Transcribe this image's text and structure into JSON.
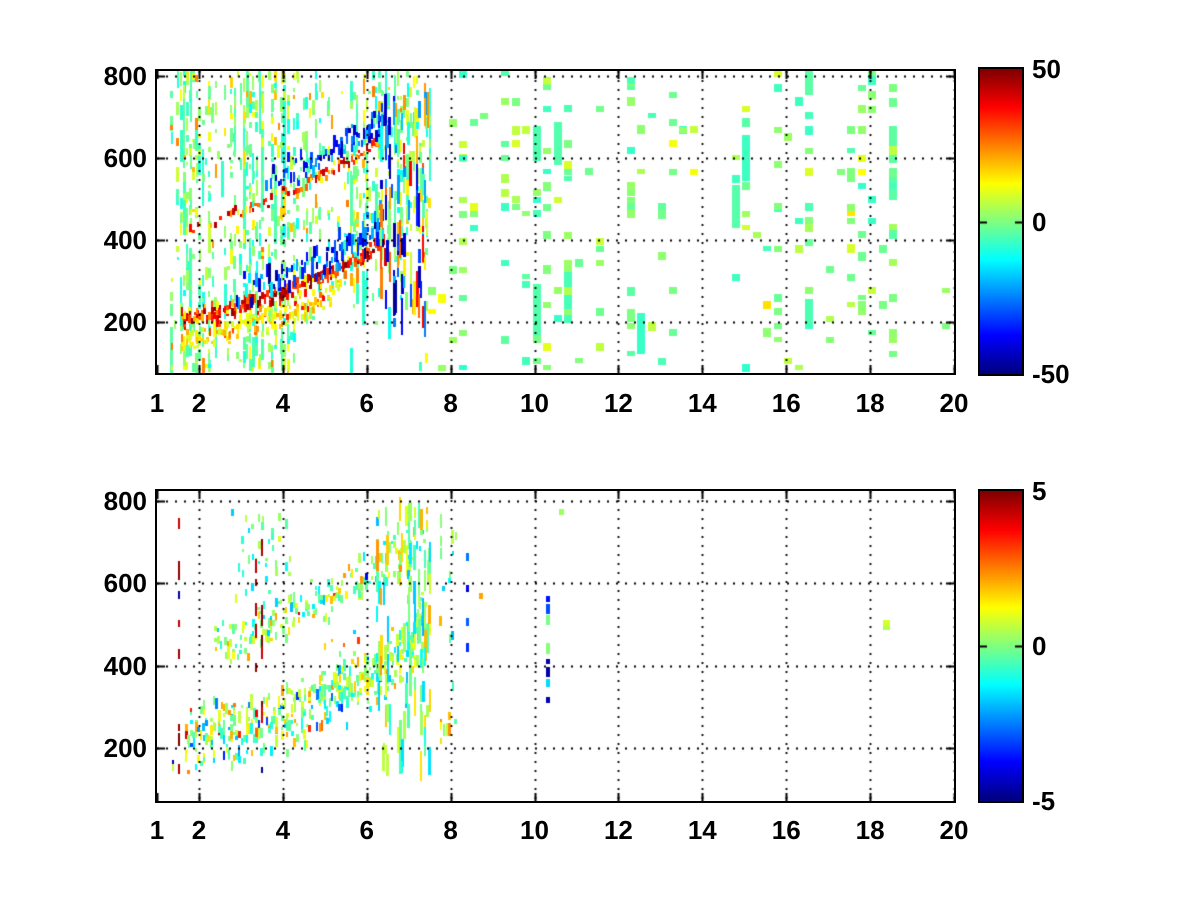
{
  "figure": {
    "background": "#ffffff",
    "text_color": "#000000",
    "colormap_name": "jet",
    "colormap_stops": [
      "#00008f",
      "#0000ff",
      "#00ffff",
      "#7dff7a",
      "#ffff00",
      "#ff0000",
      "#7f0000"
    ]
  },
  "chart_data": [
    {
      "type": "heatmap",
      "panel": "top",
      "x_range": [
        1,
        20
      ],
      "y_range": [
        75,
        812
      ],
      "x_ticks": {
        "values": [
          1,
          2,
          4,
          6,
          8,
          10,
          12,
          14,
          16,
          18,
          20
        ],
        "labels": [
          "1",
          "2",
          "4",
          "6",
          "8",
          "10",
          "12",
          "14",
          "16",
          "18",
          "20"
        ]
      },
      "y_ticks": {
        "values": [
          200,
          400,
          600,
          800
        ],
        "labels": [
          "200",
          "400",
          "600",
          "800"
        ]
      },
      "grid": {
        "style": "dotted",
        "x_lines": [
          2,
          4,
          6,
          8,
          10,
          12,
          14,
          16,
          18,
          20
        ],
        "y_lines": [
          200,
          400,
          600,
          800
        ]
      },
      "colormap": "jet",
      "clim": [
        -50,
        50
      ],
      "colorbar": {
        "position": "right",
        "tick_values": [
          50,
          0,
          -50
        ],
        "tick_labels": [
          "50",
          "0",
          "-50"
        ]
      },
      "seed": 12345,
      "curves": [
        [
          [
            1.6,
            200
          ],
          [
            2.0,
            210
          ],
          [
            2.5,
            218
          ],
          [
            3.0,
            230
          ],
          [
            3.5,
            244
          ],
          [
            4.0,
            260
          ],
          [
            4.5,
            279
          ],
          [
            5.0,
            301
          ],
          [
            5.5,
            326
          ],
          [
            6.0,
            356
          ],
          [
            6.5,
            392
          ],
          [
            7.0,
            436
          ],
          [
            7.45,
            486
          ]
        ],
        [
          [
            1.6,
            415
          ],
          [
            2.0,
            430
          ],
          [
            2.5,
            448
          ],
          [
            3.0,
            468
          ],
          [
            3.5,
            489
          ],
          [
            4.0,
            511
          ],
          [
            4.5,
            534
          ],
          [
            5.0,
            558
          ],
          [
            5.5,
            583
          ],
          [
            6.0,
            611
          ],
          [
            6.5,
            646
          ],
          [
            7.0,
            686
          ],
          [
            7.45,
            726
          ]
        ]
      ],
      "features": [
        {
          "kind": "noise",
          "x": [
            1.35,
            7.55
          ],
          "y": [
            80,
            808
          ],
          "colStep": 0.075,
          "density": 0.5,
          "dashW": [
            2,
            3
          ],
          "dashH": [
            3,
            15
          ],
          "tall": 0.045,
          "tallValues": [
            -9,
            -3
          ],
          "values": [
            [
              0.45,
              -4,
              4
            ],
            [
              0.22,
              -13,
              -4
            ],
            [
              0.25,
              4,
              14
            ],
            [
              0.08,
              14,
              26
            ]
          ],
          "cutoff": {
            "curve": 0,
            "offset": -65,
            "startX": 4.3,
            "factor": 0.12
          }
        },
        {
          "kind": "band",
          "curve": 0,
          "x": [
            1.6,
            5.4
          ],
          "offset": -42,
          "halfWidth": 34,
          "density": 0.5,
          "dashW": [
            2,
            3
          ],
          "dashH": [
            3,
            8
          ],
          "values": [
            [
              0.75,
              6,
              20
            ],
            [
              0.25,
              20,
              40
            ]
          ]
        },
        {
          "kind": "band",
          "curve": 0,
          "x": [
            1.6,
            6.4
          ],
          "offset": 10,
          "halfWidth": 20,
          "density": 0.9,
          "dashW": [
            2,
            3
          ],
          "dashH": [
            3,
            9
          ],
          "values": [
            [
              0.85,
              24,
              50
            ],
            [
              0.15,
              10,
              22
            ]
          ]
        },
        {
          "kind": "band",
          "curve": 0,
          "x": [
            2.9,
            6.4
          ],
          "offset": 58,
          "halfWidth": 46,
          "density": 0.75,
          "ramp": true,
          "dashW": [
            2,
            3
          ],
          "dashH": [
            4,
            14
          ],
          "values": [
            [
              0.8,
              -50,
              -20
            ],
            [
              0.2,
              -16,
              -5
            ]
          ]
        },
        {
          "kind": "band",
          "curve": 1,
          "x": [
            1.8,
            6.4
          ],
          "offset": 2,
          "halfWidth": 17,
          "density": 0.6,
          "ramp": true,
          "dashW": [
            2,
            3
          ],
          "dashH": [
            3,
            8
          ],
          "values": [
            [
              0.85,
              18,
              46
            ],
            [
              0.15,
              6,
              14
            ]
          ]
        },
        {
          "kind": "band",
          "curve": 1,
          "x": [
            3.6,
            6.45
          ],
          "offset": 52,
          "halfWidth": 38,
          "density": 0.7,
          "ramp": true,
          "dashW": [
            2,
            3
          ],
          "dashH": [
            4,
            12
          ],
          "values": [
            [
              0.85,
              -46,
              -16
            ],
            [
              0.15,
              -10,
              -2
            ]
          ]
        },
        {
          "kind": "noise",
          "x": [
            6.35,
            7.48
          ],
          "y": [
            195,
            745
          ],
          "colStep": 0.05,
          "density": 0.55,
          "dashW": [
            2,
            3
          ],
          "dashH": [
            8,
            38
          ],
          "values": [
            [
              0.48,
              -50,
              -18
            ],
            [
              0.3,
              12,
              42
            ],
            [
              0.22,
              -12,
              10
            ]
          ]
        },
        {
          "kind": "speckle",
          "x": [
            7.55,
            20
          ],
          "y": [
            85,
            805
          ],
          "colStep": 0.25,
          "blockW": 8,
          "blockH": [
            5,
            9
          ],
          "density": 0.17,
          "tall": 0.05,
          "tallValues": [
            -8,
            -3
          ],
          "values": [
            [
              0.5,
              -2.5,
              3
            ],
            [
              0.25,
              -8,
              -2.5
            ],
            [
              0.2,
              3,
              9
            ],
            [
              0.05,
              9,
              16
            ]
          ],
          "boost": [
            [
              8.2,
              1.8
            ],
            [
              10.35,
              2.6
            ],
            [
              10.5,
              2.0
            ],
            [
              12.4,
              1.6
            ],
            [
              14.35,
              1.5
            ],
            [
              16.5,
              1.9
            ],
            [
              18.45,
              2.6
            ],
            [
              18.6,
              2.1
            ],
            [
              19.9,
              1.7
            ]
          ]
        }
      ]
    },
    {
      "type": "heatmap",
      "panel": "bottom",
      "x_range": [
        1,
        20
      ],
      "y_range": [
        72,
        824
      ],
      "x_ticks": {
        "values": [
          1,
          2,
          4,
          6,
          8,
          10,
          12,
          14,
          16,
          18,
          20
        ],
        "labels": [
          "1",
          "2",
          "4",
          "6",
          "8",
          "10",
          "12",
          "14",
          "16",
          "18",
          "20"
        ]
      },
      "y_ticks": {
        "values": [
          200,
          400,
          600,
          800
        ],
        "labels": [
          "200",
          "400",
          "600",
          "800"
        ]
      },
      "grid": {
        "style": "dotted",
        "x_lines": [
          2,
          4,
          6,
          8,
          10,
          12,
          14,
          16,
          18,
          20
        ],
        "y_lines": [
          200,
          400,
          600,
          800
        ]
      },
      "colormap": "jet",
      "clim": [
        -5,
        5
      ],
      "colorbar": {
        "position": "right",
        "tick_values": [
          5,
          0,
          -5
        ],
        "tick_labels": [
          "5",
          "0",
          "-5"
        ]
      },
      "seed": 67890,
      "curves": [
        [
          [
            1.6,
            200
          ],
          [
            2.0,
            210
          ],
          [
            2.5,
            218
          ],
          [
            3.0,
            230
          ],
          [
            3.5,
            244
          ],
          [
            4.0,
            260
          ],
          [
            4.5,
            279
          ],
          [
            5.0,
            301
          ],
          [
            5.5,
            326
          ],
          [
            6.0,
            356
          ],
          [
            6.5,
            392
          ],
          [
            7.0,
            436
          ],
          [
            7.45,
            486
          ]
        ],
        [
          [
            1.6,
            415
          ],
          [
            2.0,
            430
          ],
          [
            2.5,
            448
          ],
          [
            3.0,
            468
          ],
          [
            3.5,
            489
          ],
          [
            4.0,
            511
          ],
          [
            4.5,
            534
          ],
          [
            5.0,
            558
          ],
          [
            5.5,
            583
          ],
          [
            6.0,
            611
          ],
          [
            6.5,
            646
          ],
          [
            7.0,
            686
          ],
          [
            7.45,
            726
          ]
        ]
      ],
      "features": [
        {
          "kind": "band",
          "curve": 0,
          "x": [
            1.7,
            7.45
          ],
          "offset": 15,
          "halfWidth": 80,
          "density": 0.5,
          "dashW": [
            2,
            3
          ],
          "dashH": [
            3,
            12
          ],
          "values": [
            [
              0.58,
              -0.6,
              1.1
            ],
            [
              0.18,
              -1.9,
              -0.6
            ],
            [
              0.15,
              1.1,
              2.3
            ],
            [
              0.05,
              -3.6,
              -1.9
            ],
            [
              0.04,
              2.3,
              4.6
            ]
          ]
        },
        {
          "kind": "band",
          "curve": 1,
          "x": [
            2.4,
            7.45
          ],
          "offset": 5,
          "halfWidth": 55,
          "density": 0.32,
          "dashW": [
            2,
            3
          ],
          "dashH": [
            3,
            10
          ],
          "values": [
            [
              0.62,
              -0.6,
              1.1
            ],
            [
              0.2,
              -1.9,
              -0.6
            ],
            [
              0.13,
              1.1,
              2.3
            ],
            [
              0.05,
              -4.5,
              4.5
            ]
          ]
        },
        {
          "kind": "noise",
          "x": [
            2.8,
            4.3
          ],
          "y": [
            560,
            780
          ],
          "colStep": 0.08,
          "density": 0.14,
          "dashW": [
            2,
            3
          ],
          "dashH": [
            3,
            10
          ],
          "values": [
            [
              0.7,
              -0.5,
              1
            ],
            [
              0.3,
              -1.8,
              -0.5
            ]
          ]
        },
        {
          "kind": "noise",
          "x": [
            6.25,
            7.5
          ],
          "y": [
            150,
            780
          ],
          "colStep": 0.05,
          "density": 0.45,
          "dashW": [
            2,
            3
          ],
          "dashH": [
            8,
            32
          ],
          "values": [
            [
              0.6,
              -0.6,
              1.1
            ],
            [
              0.25,
              -2,
              -0.6
            ],
            [
              0.15,
              1.1,
              2.5
            ]
          ]
        },
        {
          "kind": "noise",
          "x": [
            7.7,
            8.15
          ],
          "y": [
            210,
            780
          ],
          "colStep": 0.07,
          "density": 0.18,
          "dashW": [
            2,
            3
          ],
          "dashH": [
            4,
            14
          ],
          "values": [
            [
              0.55,
              -0.5,
              1.2
            ],
            [
              0.25,
              1.2,
              2.6
            ],
            [
              0.2,
              -2.2,
              -0.6
            ]
          ]
        },
        {
          "kind": "noise",
          "x": [
            5.0,
            5.9
          ],
          "y": [
            425,
            495
          ],
          "colStep": 0.09,
          "density": 0.12,
          "dashW": [
            2,
            3
          ],
          "dashH": [
            3,
            7
          ],
          "values": [
            [
              0.5,
              1.6,
              3.2
            ],
            [
              0.3,
              -2.8,
              -1.2
            ],
            [
              0.2,
              -0.5,
              1
            ]
          ]
        },
        {
          "kind": "col",
          "x": 1.52,
          "w": 2,
          "y": [
            110,
            780
          ],
          "count": 9,
          "dashH": [
            6,
            13
          ],
          "values": [
            [
              0.85,
              4.2,
              5
            ],
            [
              0.15,
              -5,
              -4.2
            ]
          ]
        },
        {
          "kind": "col",
          "x": 3.35,
          "w": 2,
          "y": [
            250,
            770
          ],
          "count": 7,
          "dashH": [
            6,
            14
          ],
          "values": [
            [
              0.9,
              4.2,
              5
            ],
            [
              0.1,
              -5,
              -4.3
            ]
          ]
        },
        {
          "kind": "col",
          "x": 3.5,
          "w": 2,
          "y": [
            100,
            770
          ],
          "count": 11,
          "dashH": [
            6,
            16
          ],
          "values": [
            [
              0.8,
              4.2,
              5
            ],
            [
              0.2,
              -5,
              -4.2
            ]
          ]
        },
        {
          "kind": "col",
          "x": 1.38,
          "w": 2,
          "y": [
            130,
            175
          ],
          "count": 2,
          "dashH": [
            4,
            8
          ],
          "values": [
            [
              0.5,
              0.3,
              0.8
            ],
            [
              0.5,
              -4.5,
              -3.5
            ]
          ]
        },
        {
          "kind": "col",
          "x": 8.4,
          "w": 3,
          "y": [
            340,
            700
          ],
          "count": 5,
          "dashH": [
            5,
            10
          ],
          "values": [
            [
              1,
              -4.5,
              -2.2
            ]
          ]
        },
        {
          "kind": "col",
          "x": 8.72,
          "w": 4,
          "y": [
            555,
            575
          ],
          "count": 1,
          "dashH": [
            5,
            7
          ],
          "values": [
            [
              1,
              2,
              2.6
            ]
          ]
        },
        {
          "kind": "col",
          "x": 10.32,
          "w": 4,
          "y": [
            195,
            565
          ],
          "count": 9,
          "dashH": [
            5,
            12
          ],
          "values": [
            [
              0.45,
              -0.5,
              1
            ],
            [
              0.3,
              -3,
              -1
            ],
            [
              0.25,
              -5,
              -3.3
            ]
          ]
        },
        {
          "kind": "col",
          "x": 10.65,
          "w": 5,
          "y": [
            765,
            778
          ],
          "count": 1,
          "dashH": [
            4,
            6
          ],
          "values": [
            [
              1,
              0.3,
              0.8
            ]
          ]
        },
        {
          "kind": "col",
          "x": 18.38,
          "w": 7,
          "y": [
            485,
            520
          ],
          "count": 2,
          "dashH": [
            5,
            7
          ],
          "values": [
            [
              1,
              0.2,
              0.9
            ]
          ]
        }
      ]
    }
  ]
}
